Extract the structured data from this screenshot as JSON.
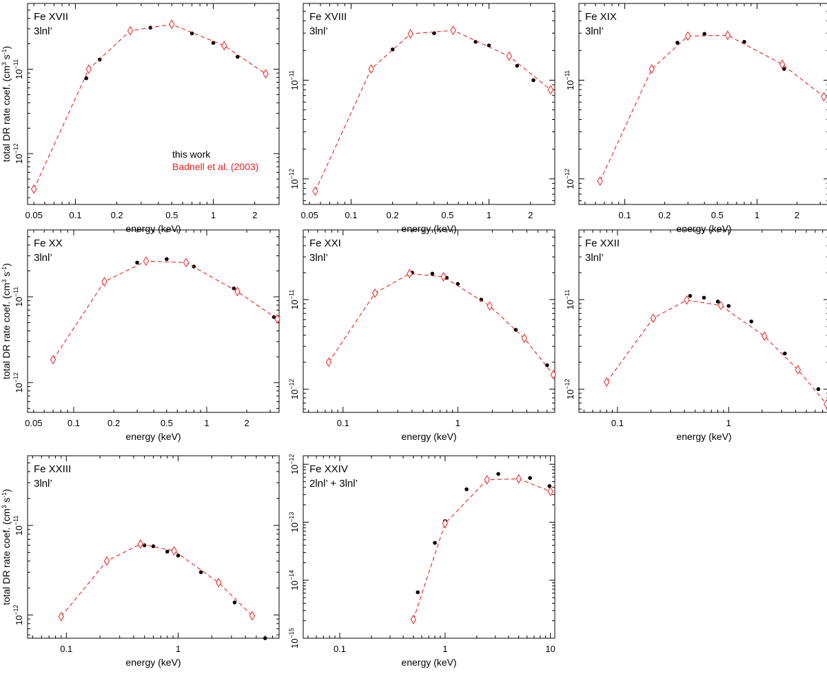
{
  "colors": {
    "this_work": "#000000",
    "badnell": "#e8201e",
    "axes": "#000000"
  },
  "legend": {
    "this_work": "this work",
    "badnell": "Badnell et al. (2003)"
  },
  "chart_data": [
    {
      "type": "scatter",
      "scale": "log-log",
      "title": "Fe XVII",
      "subtitle": "3lnl’",
      "xlabel": "energy (keV)",
      "ylabel": "total DR rate coef. (cm3 s-1)",
      "xlim": [
        0.045,
        3.0
      ],
      "ylim": [
        2.5e-13,
        6e-11
      ],
      "xticks": [
        "0.05",
        "0.1",
        "0.2",
        "0.5",
        "1",
        "2"
      ],
      "yticks": [
        "10−12",
        "10−11"
      ],
      "series": [
        {
          "name": "this work",
          "style": "dots",
          "x": [
            0.12,
            0.15,
            0.35,
            0.7,
            1.0,
            1.5
          ],
          "y": [
            7.8e-12,
            1.3e-11,
            3.1e-11,
            2.65e-11,
            2.05e-11,
            1.4e-11
          ]
        },
        {
          "name": "Badnell et al. (2003)",
          "style": "diamonds-dashed",
          "x": [
            0.05,
            0.125,
            0.25,
            0.5,
            1.2,
            2.4
          ],
          "y": [
            3.8e-13,
            1e-11,
            2.85e-11,
            3.4e-11,
            1.9e-11,
            8.8e-12
          ]
        }
      ]
    },
    {
      "type": "scatter",
      "scale": "log-log",
      "title": "Fe XVIII",
      "subtitle": "3lnl’",
      "xlabel": "energy (keV)",
      "ylabel": "",
      "xlim": [
        0.045,
        3.0
      ],
      "ylim": [
        5.5e-13,
        6e-11
      ],
      "xticks": [
        "0.05",
        "0.1",
        "0.2",
        "0.5",
        "1",
        "2"
      ],
      "yticks": [
        "10−12",
        "10−11"
      ],
      "series": [
        {
          "name": "this work",
          "style": "dots",
          "x": [
            0.2,
            0.4,
            0.8,
            1.0,
            1.6,
            2.1
          ],
          "y": [
            2.05e-11,
            3e-11,
            2.45e-11,
            2.25e-11,
            1.4e-11,
            1e-11
          ]
        },
        {
          "name": "Badnell et al. (2003)",
          "style": "diamonds-dashed",
          "x": [
            0.055,
            0.14,
            0.27,
            0.55,
            1.4,
            2.8
          ],
          "y": [
            7.5e-13,
            1.3e-11,
            2.95e-11,
            3.2e-11,
            1.75e-11,
            8e-12
          ]
        }
      ]
    },
    {
      "type": "scatter",
      "scale": "log-log",
      "title": "Fe XIX",
      "subtitle": "3lnl’",
      "xlabel": "energy (keV)",
      "ylabel": "",
      "xlim": [
        0.045,
        3.5
      ],
      "ylim": [
        5.5e-13,
        6e-11
      ],
      "xticks": [
        "0.1",
        "0.2",
        "0.5",
        "1",
        "2"
      ],
      "yticks": [
        "10−12",
        "10−11"
      ],
      "series": [
        {
          "name": "this work",
          "style": "dots",
          "x": [
            0.25,
            0.4,
            0.8,
            1.6
          ],
          "y": [
            2.4e-11,
            2.95e-11,
            2.45e-11,
            1.3e-11
          ]
        },
        {
          "name": "Badnell et al. (2003)",
          "style": "diamonds-dashed",
          "x": [
            0.065,
            0.16,
            0.3,
            0.6,
            1.55,
            3.2
          ],
          "y": [
            9.5e-13,
            1.3e-11,
            2.8e-11,
            2.85e-11,
            1.45e-11,
            6.8e-12
          ]
        }
      ]
    },
    {
      "type": "scatter",
      "scale": "log-log",
      "title": "Fe XX",
      "subtitle": "3lnl’",
      "xlabel": "energy (keV)",
      "ylabel": "total DR rate coef. (cm3 s-1)",
      "xlim": [
        0.045,
        3.5
      ],
      "ylim": [
        4.5e-13,
        6e-11
      ],
      "xticks": [
        "0.05",
        "0.1",
        "0.2",
        "0.5",
        "1",
        "2"
      ],
      "yticks": [
        "10−12",
        "10−11"
      ],
      "series": [
        {
          "name": "this work",
          "style": "dots",
          "x": [
            0.3,
            0.5,
            0.8,
            1.6,
            3.2
          ],
          "y": [
            2.5e-11,
            2.75e-11,
            2.25e-11,
            1.25e-11,
            5.8e-12
          ]
        },
        {
          "name": "Badnell et al. (2003)",
          "style": "diamonds-dashed",
          "x": [
            0.07,
            0.17,
            0.35,
            0.7,
            1.7,
            3.4
          ],
          "y": [
            1.85e-12,
            1.5e-11,
            2.6e-11,
            2.5e-11,
            1.15e-11,
            5.5e-12
          ]
        }
      ]
    },
    {
      "type": "scatter",
      "scale": "log-log",
      "title": "Fe XXI",
      "subtitle": "3lnl’",
      "xlabel": "energy (keV)",
      "ylabel": "",
      "xlim": [
        0.045,
        7.0
      ],
      "ylim": [
        5.5e-13,
        6e-11
      ],
      "xticks": [
        "0.1",
        "1"
      ],
      "yticks": [
        "10−12",
        "10−11"
      ],
      "series": [
        {
          "name": "this work",
          "style": "dots",
          "x": [
            0.4,
            0.6,
            0.8,
            1.0,
            1.6,
            3.2,
            6.0
          ],
          "y": [
            2e-11,
            1.95e-11,
            1.75e-11,
            1.5e-11,
            1e-11,
            4.6e-12,
            1.85e-12
          ]
        },
        {
          "name": "Badnell et al. (2003)",
          "style": "diamonds-dashed",
          "x": [
            0.075,
            0.19,
            0.38,
            0.75,
            1.9,
            3.8,
            6.8
          ],
          "y": [
            2e-12,
            1.18e-11,
            1.95e-11,
            1.8e-11,
            8.5e-12,
            3.7e-12,
            1.45e-12
          ]
        }
      ]
    },
    {
      "type": "scatter",
      "scale": "log-log",
      "title": "Fe XXII",
      "subtitle": "3lnl’",
      "xlabel": "energy (keV)",
      "ylabel": "",
      "xlim": [
        0.045,
        8.0
      ],
      "ylim": [
        5.5e-13,
        6e-11
      ],
      "xticks": [
        "0.1",
        "1"
      ],
      "yticks": [
        "10−12",
        "10−11"
      ],
      "series": [
        {
          "name": "this work",
          "style": "dots",
          "x": [
            0.45,
            0.6,
            0.8,
            1.0,
            1.6,
            3.2,
            6.4
          ],
          "y": [
            1.1e-11,
            1.05e-11,
            9.5e-12,
            8.5e-12,
            5.7e-12,
            2.5e-12,
            1e-12
          ]
        },
        {
          "name": "Badnell et al. (2003)",
          "style": "diamonds-dashed",
          "x": [
            0.08,
            0.21,
            0.42,
            0.85,
            2.1,
            4.2,
            7.6
          ],
          "y": [
            1.2e-12,
            6.2e-12,
            9.9e-12,
            8.6e-12,
            3.9e-12,
            1.65e-12,
            6.8e-13
          ]
        }
      ]
    },
    {
      "type": "scatter",
      "scale": "log-log",
      "title": "Fe XXIII",
      "subtitle": "3lnl’",
      "xlabel": "energy (keV)",
      "ylabel": "total DR rate coef. (cm3 s-1)",
      "xlim": [
        0.045,
        8.0
      ],
      "ylim": [
        5.5e-13,
        6e-11
      ],
      "xticks": [
        "0.1",
        "1"
      ],
      "yticks": [
        "10−12",
        "10−11"
      ],
      "series": [
        {
          "name": "this work",
          "style": "dots",
          "x": [
            0.5,
            0.6,
            0.8,
            1.0,
            1.6,
            3.2,
            6.0
          ],
          "y": [
            6e-12,
            5.85e-12,
            5.1e-12,
            4.6e-12,
            3e-12,
            1.38e-12,
            5.5e-13
          ]
        },
        {
          "name": "Badnell et al. (2003)",
          "style": "diamonds-dashed",
          "x": [
            0.09,
            0.23,
            0.46,
            0.92,
            2.3,
            4.6
          ],
          "y": [
            9.6e-13,
            4e-12,
            6.2e-12,
            5.2e-12,
            2.3e-12,
            9.8e-13
          ]
        }
      ]
    },
    {
      "type": "scatter",
      "scale": "log-log",
      "title": "Fe XXIV",
      "subtitle": "2lnl’ + 3lnl’",
      "xlabel": "energy (keV)",
      "ylabel": "",
      "xlim": [
        0.045,
        11.0
      ],
      "ylim": [
        1e-15,
        1.4e-12
      ],
      "xticks": [
        "0.1",
        "1",
        "10"
      ],
      "yticks": [
        "10−15",
        "10−14",
        "10−13",
        "10−12"
      ],
      "series": [
        {
          "name": "this work",
          "style": "dots",
          "x": [
            0.55,
            0.8,
            1.0,
            1.6,
            3.2,
            6.4,
            9.8
          ],
          "y": [
            6.2e-15,
            4.4e-14,
            1.05e-13,
            3.7e-13,
            6.8e-13,
            5.8e-13,
            4.2e-13
          ]
        },
        {
          "name": "Badnell et al. (2003)",
          "style": "diamonds-dashed",
          "x": [
            0.5,
            1.0,
            2.5,
            5.0,
            10.0
          ],
          "y": [
            2.1e-15,
            9.5e-14,
            5.4e-13,
            5.6e-13,
            3.4e-13
          ]
        }
      ]
    }
  ]
}
